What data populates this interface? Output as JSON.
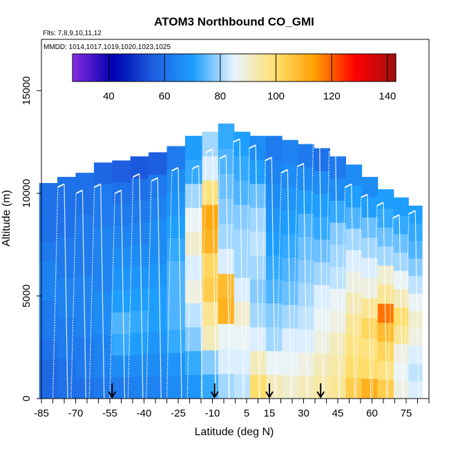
{
  "chart_data": {
    "type": "heatmap",
    "title": "ATOM3 Northbound CO_GMI",
    "flights_label": "Flts: 7,8,9,10,11,12",
    "dates_label": "MMDD: 1014,1017,1019,1020,1023,1025",
    "xlabel": "Latitude (deg N)",
    "ylabel": "Altitude (m)",
    "xlim": [
      -85,
      85
    ],
    "ylim": [
      0,
      17500
    ],
    "x_ticks": [
      -85,
      -70,
      -55,
      -40,
      -25,
      -10,
      5,
      15,
      30,
      45,
      60,
      75
    ],
    "y_ticks": [
      0,
      5000,
      10000,
      15000
    ],
    "colorbar": {
      "range": [
        27,
        143
      ],
      "ticks": [
        40,
        60,
        80,
        100,
        120,
        140
      ],
      "colors": [
        "#8a2be2",
        "#0000b0",
        "#1e5fe0",
        "#1ea0ff",
        "#e8f4ff",
        "#ffe070",
        "#ffa000",
        "#ff0000",
        "#a01010"
      ]
    },
    "arrows_lat": [
      -54,
      -9,
      15,
      37.5
    ],
    "columns": [
      {
        "lat": -82,
        "top": 10500,
        "v": [
          58,
          58,
          60,
          62,
          62,
          64,
          64,
          62,
          60,
          60,
          60
        ]
      },
      {
        "lat": -74,
        "top": 10800,
        "v": [
          60,
          60,
          62,
          62,
          64,
          64,
          62,
          62,
          60,
          60,
          60
        ]
      },
      {
        "lat": -66,
        "top": 11000,
        "v": [
          60,
          62,
          62,
          64,
          64,
          64,
          62,
          62,
          62,
          60,
          60
        ]
      },
      {
        "lat": -58,
        "top": 11500,
        "v": [
          62,
          64,
          64,
          66,
          66,
          64,
          64,
          64,
          62,
          62,
          58
        ]
      },
      {
        "lat": -50,
        "top": 11600,
        "v": [
          62,
          66,
          72,
          74,
          70,
          68,
          66,
          64,
          62,
          60,
          56
        ]
      },
      {
        "lat": -42,
        "top": 11800,
        "v": [
          64,
          66,
          70,
          72,
          70,
          68,
          66,
          64,
          62,
          60,
          55
        ]
      },
      {
        "lat": -34,
        "top": 12000,
        "v": [
          64,
          66,
          68,
          70,
          70,
          68,
          66,
          66,
          64,
          62,
          56
        ]
      },
      {
        "lat": -26,
        "top": 12300,
        "v": [
          66,
          68,
          72,
          74,
          74,
          74,
          72,
          70,
          68,
          66,
          62
        ]
      },
      {
        "lat": -18,
        "top": 12800,
        "v": [
          68,
          72,
          78,
          82,
          88,
          84,
          90,
          86,
          80,
          72,
          70
        ]
      },
      {
        "lat": -11,
        "top": 13000,
        "v": [
          72,
          78,
          92,
          96,
          104,
          102,
          110,
          112,
          98,
          84,
          80
        ]
      },
      {
        "lat": -4,
        "top": 13400,
        "v": [
          80,
          84,
          86,
          110,
          108,
          84,
          80,
          78,
          76,
          74,
          72
        ]
      },
      {
        "lat": 3,
        "top": 13000,
        "v": [
          82,
          84,
          86,
          90,
          84,
          80,
          80,
          78,
          74,
          72,
          70
        ]
      },
      {
        "lat": 10,
        "top": 12800,
        "v": [
          100,
          92,
          84,
          80,
          78,
          80,
          82,
          80,
          76,
          70,
          66
        ]
      },
      {
        "lat": 17,
        "top": 12800,
        "v": [
          92,
          86,
          80,
          78,
          74,
          72,
          70,
          68,
          66,
          64,
          62
        ]
      },
      {
        "lat": 24,
        "top": 12600,
        "v": [
          90,
          86,
          84,
          80,
          76,
          74,
          72,
          70,
          68,
          66,
          64
        ]
      },
      {
        "lat": 31,
        "top": 12400,
        "v": [
          92,
          88,
          84,
          82,
          80,
          78,
          76,
          74,
          70,
          66,
          62
        ]
      },
      {
        "lat": 38,
        "top": 12200,
        "v": [
          94,
          92,
          88,
          86,
          84,
          80,
          76,
          72,
          70,
          66,
          60
        ]
      },
      {
        "lat": 45,
        "top": 11800,
        "v": [
          96,
          94,
          92,
          88,
          86,
          82,
          80,
          78,
          72,
          66,
          62
        ]
      },
      {
        "lat": 52,
        "top": 11400,
        "v": [
          104,
          100,
          98,
          96,
          92,
          88,
          84,
          80,
          74,
          70,
          66
        ]
      },
      {
        "lat": 59,
        "top": 10800,
        "v": [
          110,
          100,
          98,
          102,
          96,
          88,
          84,
          80,
          76,
          70,
          66
        ]
      },
      {
        "lat": 66,
        "top": 10200,
        "v": [
          104,
          98,
          102,
          108,
          118,
          96,
          90,
          80,
          76,
          72,
          70
        ]
      },
      {
        "lat": 73,
        "top": 9800,
        "v": [
          88,
          86,
          88,
          96,
          100,
          92,
          86,
          80,
          76,
          72,
          70
        ]
      },
      {
        "lat": 79,
        "top": 9400,
        "v": [
          84,
          82,
          84,
          88,
          90,
          86,
          82,
          78,
          74,
          72,
          70
        ]
      }
    ],
    "profiles": [
      {
        "lat": -80,
        "top": 10300
      },
      {
        "lat": -72,
        "top": 10000
      },
      {
        "lat": -64,
        "top": 10300
      },
      {
        "lat": -55,
        "top": 10000
      },
      {
        "lat": -47,
        "top": 10800
      },
      {
        "lat": -39,
        "top": 10600
      },
      {
        "lat": -30,
        "top": 11100
      },
      {
        "lat": -21,
        "top": 11200
      },
      {
        "lat": -15,
        "top": 12000
      },
      {
        "lat": -9,
        "top": 11700
      },
      {
        "lat": -3,
        "top": 12500
      },
      {
        "lat": 4,
        "top": 12200
      },
      {
        "lat": 11,
        "top": 11600
      },
      {
        "lat": 18,
        "top": 11000
      },
      {
        "lat": 25,
        "top": 11300
      },
      {
        "lat": 32,
        "top": 12500
      },
      {
        "lat": 39,
        "top": 12000
      },
      {
        "lat": 46,
        "top": 10300
      },
      {
        "lat": 53,
        "top": 9800
      },
      {
        "lat": 60,
        "top": 9400
      },
      {
        "lat": 67,
        "top": 8800
      },
      {
        "lat": 74,
        "top": 9000
      }
    ]
  }
}
